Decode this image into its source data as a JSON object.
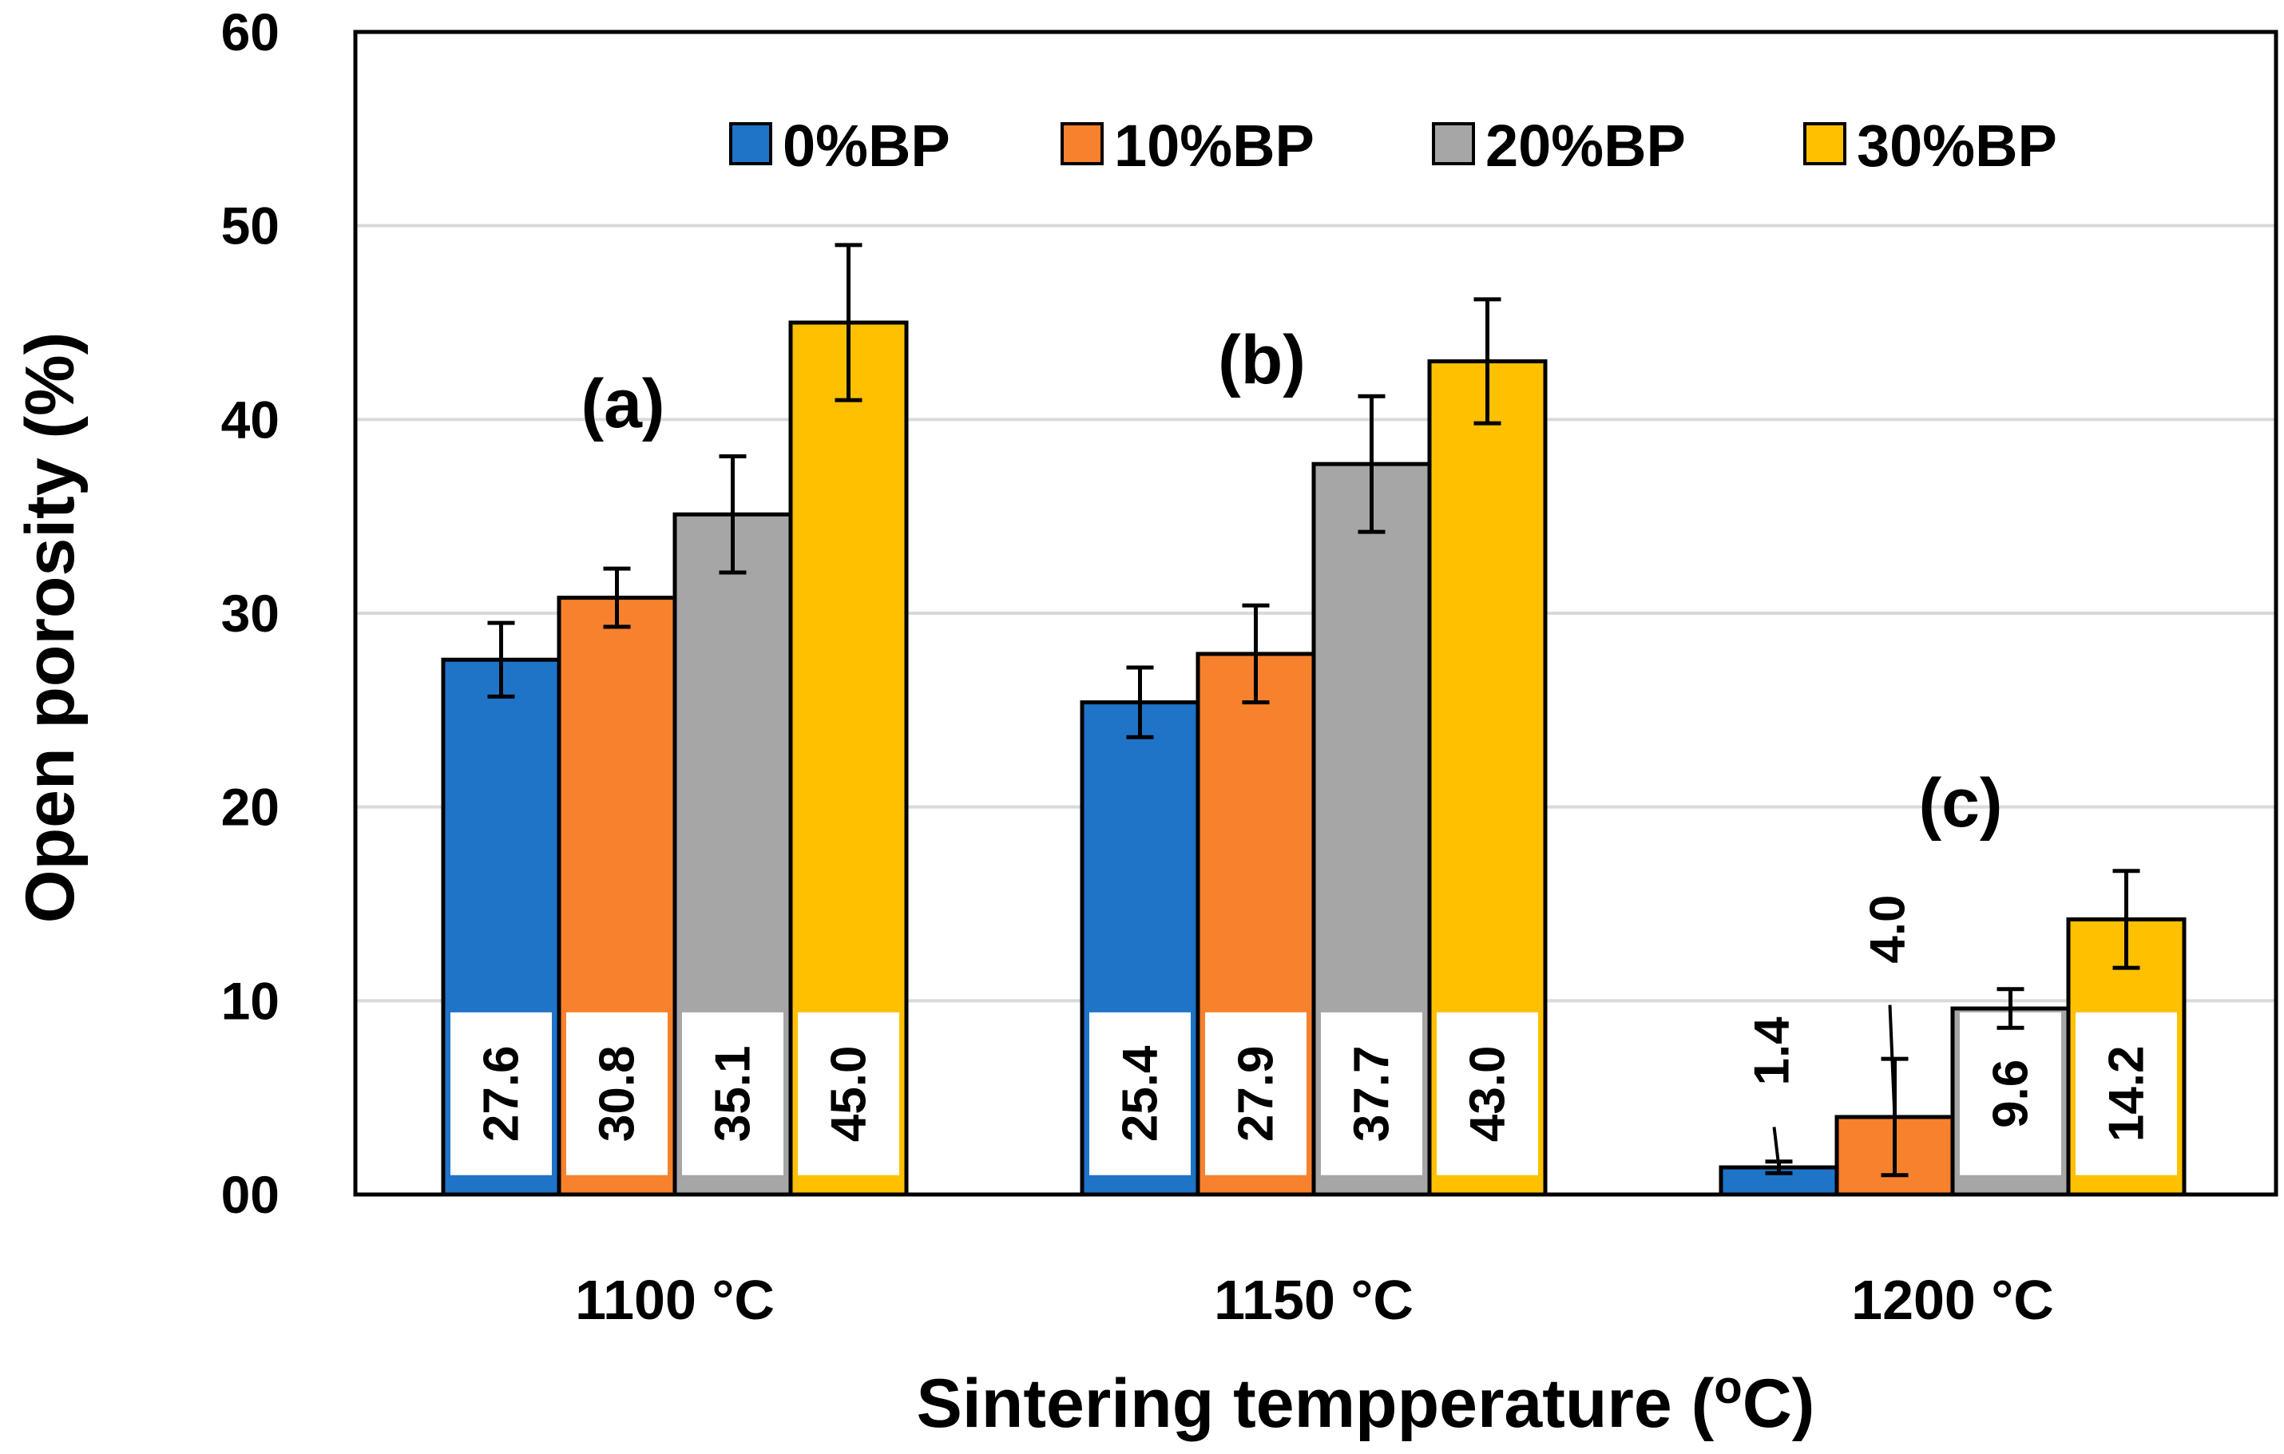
{
  "chart_data": {
    "type": "bar",
    "title": "",
    "xlabel": "Sintering tempperature (",
    "xlabel_superscript": "o",
    "xlabel_suffix": "C)",
    "ylabel": "Open porosity (%)",
    "ylim": [
      0,
      60
    ],
    "yticks": [
      0,
      10,
      20,
      30,
      40,
      50,
      60
    ],
    "ytick_labels": [
      "00",
      "10",
      "20",
      "30",
      "40",
      "50",
      "60"
    ],
    "grid": true,
    "legend_position": "top-right",
    "categories": [
      "1100 °C",
      "1150 °C",
      "1200 °C"
    ],
    "series": [
      {
        "name": "0%BP",
        "color": "#1F74C8",
        "values": [
          27.6,
          25.4,
          1.4
        ],
        "errors": [
          1.9,
          1.8,
          0.3
        ],
        "labels": [
          "27.6",
          "25.4",
          "1.4"
        ]
      },
      {
        "name": "10%BP",
        "color": "#F7812C",
        "values": [
          30.8,
          27.9,
          4.0
        ],
        "errors": [
          1.5,
          2.5,
          3.0
        ],
        "labels": [
          "30.8",
          "27.9",
          "4.0"
        ]
      },
      {
        "name": "20%BP",
        "color": "#A6A6A6",
        "values": [
          35.1,
          37.7,
          9.6
        ],
        "errors": [
          3.0,
          3.5,
          1.0
        ],
        "labels": [
          "35.1",
          "37.7",
          "9.6"
        ]
      },
      {
        "name": "30%BP",
        "color": "#FFC000",
        "values": [
          45.0,
          43.0,
          14.2
        ],
        "errors": [
          4.0,
          3.2,
          2.5
        ],
        "labels": [
          "45.0",
          "43.0",
          "14.2"
        ]
      }
    ],
    "annotations": [
      "(a)",
      "(b)",
      "(c)"
    ]
  }
}
